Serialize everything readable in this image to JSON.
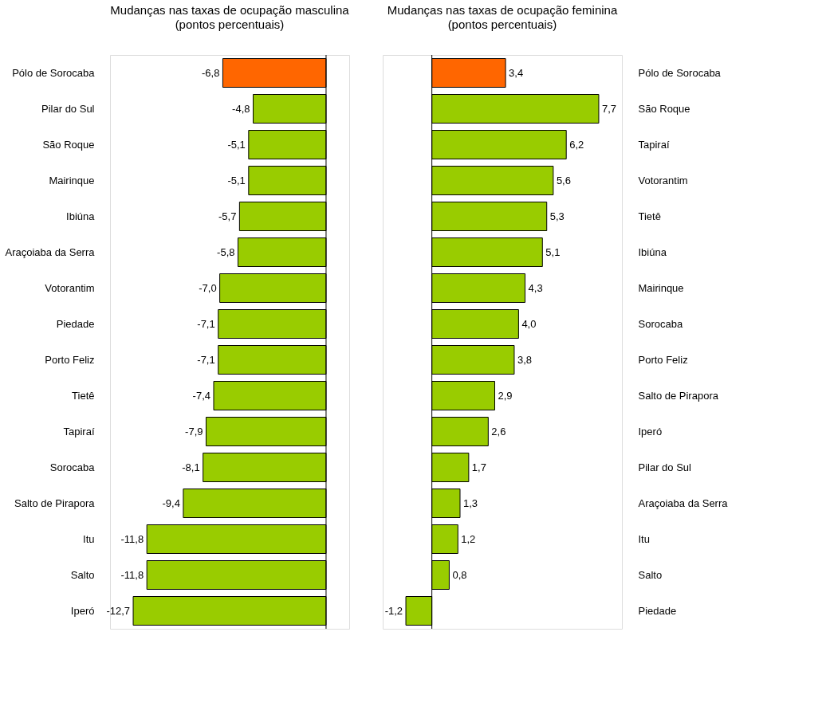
{
  "chart_data": [
    {
      "type": "bar",
      "orientation": "horizontal",
      "title": "Mudanças nas taxas de ocupação masculina",
      "subtitle": "(pontos percentuais)",
      "categories": [
        "Pólo de Sorocaba",
        "Pilar do Sul",
        "São Roque",
        "Mairinque",
        "Ibiúna",
        "Araçoiaba da Serra",
        "Votorantim",
        "Piedade",
        "Porto Feliz",
        "Tietê",
        "Tapiraí",
        "Sorocaba",
        "Salto de Pirapora",
        "Itu",
        "Salto",
        "Iperó"
      ],
      "values": [
        -6.8,
        -4.8,
        -5.1,
        -5.1,
        -5.7,
        -5.8,
        -7.0,
        -7.1,
        -7.1,
        -7.4,
        -7.9,
        -8.1,
        -9.4,
        -11.8,
        -11.8,
        -12.7
      ],
      "value_labels": [
        "-6,8",
        "-4,8",
        "-5,1",
        "-5,1",
        "-5,7",
        "-5,8",
        "-7,0",
        "-7,1",
        "-7,1",
        "-7,4",
        "-7,9",
        "-8,1",
        "-9,4",
        "-11,8",
        "-11,8",
        "-12,7"
      ],
      "colors": [
        "#ff6600",
        "#99cc00",
        "#99cc00",
        "#99cc00",
        "#99cc00",
        "#99cc00",
        "#99cc00",
        "#99cc00",
        "#99cc00",
        "#99cc00",
        "#99cc00",
        "#99cc00",
        "#99cc00",
        "#99cc00",
        "#99cc00",
        "#99cc00"
      ]
    },
    {
      "type": "bar",
      "orientation": "horizontal",
      "title": "Mudanças nas taxas de ocupação feminina",
      "subtitle": "(pontos percentuais)",
      "categories": [
        "Pólo de Sorocaba",
        "São Roque",
        "Tapiraí",
        "Votorantim",
        "Tietê",
        "Ibiúna",
        "Mairinque",
        "Sorocaba",
        "Porto Feliz",
        "Salto de Pirapora",
        "Iperó",
        "Pilar do Sul",
        "Araçoiaba da Serra",
        "Itu",
        "Salto",
        "Piedade"
      ],
      "values": [
        3.4,
        7.7,
        6.2,
        5.6,
        5.3,
        5.1,
        4.3,
        4.0,
        3.8,
        2.9,
        2.6,
        1.7,
        1.3,
        1.2,
        0.8,
        -1.2
      ],
      "value_labels": [
        "3,4",
        "7,7",
        "6,2",
        "5,6",
        "5,3",
        "5,1",
        "4,3",
        "4,0",
        "3,8",
        "2,9",
        "2,6",
        "1,7",
        "1,3",
        "1,2",
        "0,8",
        "-1,2"
      ],
      "colors": [
        "#ff6600",
        "#99cc00",
        "#99cc00",
        "#99cc00",
        "#99cc00",
        "#99cc00",
        "#99cc00",
        "#99cc00",
        "#99cc00",
        "#99cc00",
        "#99cc00",
        "#99cc00",
        "#99cc00",
        "#99cc00",
        "#99cc00",
        "#99cc00"
      ]
    }
  ]
}
